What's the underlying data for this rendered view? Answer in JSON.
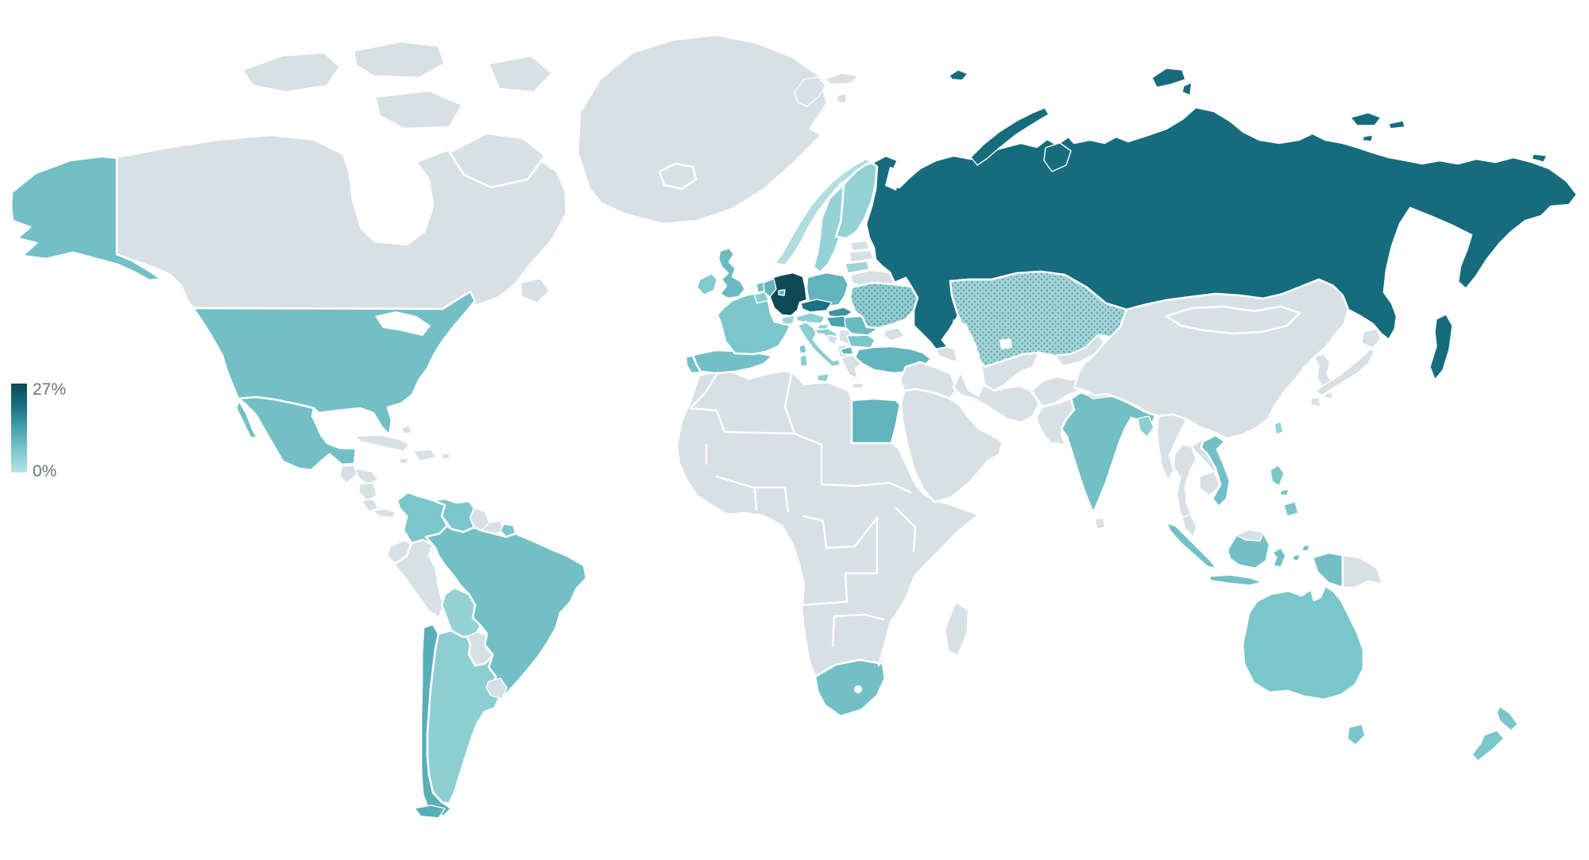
{
  "legend": {
    "max_label": "27%",
    "min_label": "0%"
  },
  "scale": {
    "min": 0,
    "max": 27,
    "unit": "%",
    "no_data_color": "#d7e0e4",
    "stops": [
      "#b9e1e4",
      "#7cc7cb",
      "#45a0ad",
      "#177082",
      "#0e4956"
    ],
    "label_color": "#6b767c",
    "border_color": "#ffffff",
    "sea_color": "#ffffff"
  },
  "chart_data": {
    "type": "heatmap",
    "subtype": "choropleth-world-map",
    "title": "",
    "unit": "%",
    "value_range": [
      0,
      27
    ],
    "legend_position": "left",
    "note": "values estimated from fill colors against the 0%-27% legend gradient; null = no data (gray)",
    "countries": [
      {
        "id": "us",
        "name": "United States",
        "value": 8
      },
      {
        "id": "canada",
        "name": "Canada",
        "value": null
      },
      {
        "id": "greenland",
        "name": "Greenland",
        "value": null
      },
      {
        "id": "mexico",
        "name": "Mexico",
        "value": 8
      },
      {
        "id": "guatemala",
        "name": "Guatemala",
        "value": null
      },
      {
        "id": "honduras",
        "name": "Honduras",
        "value": null
      },
      {
        "id": "nicaragua",
        "name": "Nicaragua",
        "value": null
      },
      {
        "id": "costa-rica",
        "name": "Costa Rica",
        "value": null
      },
      {
        "id": "panama",
        "name": "Panama",
        "value": null
      },
      {
        "id": "cuba",
        "name": "Cuba",
        "value": null
      },
      {
        "id": "hispaniola",
        "name": "Dominican Republic / Haiti",
        "value": null
      },
      {
        "id": "jamaica",
        "name": "Jamaica",
        "value": null
      },
      {
        "id": "puerto-rico",
        "name": "Puerto Rico",
        "value": null
      },
      {
        "id": "bahamas",
        "name": "Bahamas",
        "value": null
      },
      {
        "id": "colombia",
        "name": "Colombia",
        "value": 7
      },
      {
        "id": "venezuela",
        "name": "Venezuela",
        "value": 7
      },
      {
        "id": "guyana",
        "name": "Guyana",
        "value": null
      },
      {
        "id": "suriname",
        "name": "Suriname",
        "value": null
      },
      {
        "id": "french-guiana",
        "name": "French Guiana",
        "value": 7
      },
      {
        "id": "ecuador",
        "name": "Ecuador",
        "value": null
      },
      {
        "id": "peru",
        "name": "Peru",
        "value": null
      },
      {
        "id": "brazil",
        "name": "Brazil",
        "value": 8
      },
      {
        "id": "bolivia",
        "name": "Bolivia",
        "value": 4
      },
      {
        "id": "paraguay",
        "name": "Paraguay",
        "value": null
      },
      {
        "id": "chile",
        "name": "Chile",
        "value": 11
      },
      {
        "id": "argentina",
        "name": "Argentina",
        "value": 5
      },
      {
        "id": "uruguay",
        "name": "Uruguay",
        "value": null
      },
      {
        "id": "iceland",
        "name": "Iceland",
        "value": null
      },
      {
        "id": "ireland",
        "name": "Ireland",
        "value": 6
      },
      {
        "id": "uk",
        "name": "United Kingdom",
        "value": 9
      },
      {
        "id": "portugal",
        "name": "Portugal",
        "value": 8
      },
      {
        "id": "spain",
        "name": "Spain",
        "value": 8
      },
      {
        "id": "france",
        "name": "France",
        "value": 7
      },
      {
        "id": "belgium",
        "name": "Belgium",
        "value": 5
      },
      {
        "id": "netherlands",
        "name": "Netherlands",
        "value": 8
      },
      {
        "id": "germany",
        "name": "Germany",
        "value": 27
      },
      {
        "id": "denmark",
        "name": "Denmark",
        "value": 10
      },
      {
        "id": "norway",
        "name": "Norway",
        "value": 1
      },
      {
        "id": "sweden",
        "name": "Sweden",
        "value": 4
      },
      {
        "id": "finland",
        "name": "Finland",
        "value": 4
      },
      {
        "id": "estonia",
        "name": "Estonia",
        "value": null
      },
      {
        "id": "latvia",
        "name": "Latvia",
        "value": null
      },
      {
        "id": "lithuania",
        "name": "Lithuania",
        "value": 3
      },
      {
        "id": "belarus",
        "name": "Belarus",
        "value": null
      },
      {
        "id": "poland",
        "name": "Poland",
        "value": 10
      },
      {
        "id": "czechia",
        "name": "Czechia",
        "value": 20
      },
      {
        "id": "slovakia",
        "name": "Slovakia",
        "value": 15
      },
      {
        "id": "hungary",
        "name": "Hungary",
        "value": 13
      },
      {
        "id": "austria",
        "name": "Austria",
        "value": 5
      },
      {
        "id": "switzerland",
        "name": "Switzerland",
        "value": 3
      },
      {
        "id": "slovenia",
        "name": "Slovenia",
        "value": 4
      },
      {
        "id": "croatia",
        "name": "Croatia",
        "value": 5
      },
      {
        "id": "bosnia",
        "name": "Bosnia and Herzegovina",
        "value": null
      },
      {
        "id": "serbia",
        "name": "Serbia",
        "value": null
      },
      {
        "id": "albania",
        "name": "Albania / Montenegro",
        "value": null
      },
      {
        "id": "macedonia",
        "name": "North Macedonia",
        "value": null
      },
      {
        "id": "greece",
        "name": "Greece",
        "value": null
      },
      {
        "id": "romania",
        "name": "Romania",
        "value": 9
      },
      {
        "id": "moldova",
        "name": "Moldova",
        "value": null
      },
      {
        "id": "bulgaria",
        "name": "Bulgaria",
        "value": 7
      },
      {
        "id": "ukraine",
        "name": "Ukraine",
        "value": 5,
        "pattern": "dots"
      },
      {
        "id": "crimea",
        "name": "Crimea",
        "value": null
      },
      {
        "id": "italy",
        "name": "Italy",
        "value": 5
      },
      {
        "id": "russia",
        "name": "Russia",
        "value": 21
      },
      {
        "id": "svalbard",
        "name": "Svalbard",
        "value": null
      },
      {
        "id": "kazakhstan",
        "name": "Kazakhstan",
        "value": 3,
        "pattern": "dots"
      },
      {
        "id": "central-asia-west",
        "name": "Uzbekistan / Turkmenistan",
        "value": null
      },
      {
        "id": "central-asia-east",
        "name": "Kyrgyzstan / Tajikistan",
        "value": null
      },
      {
        "id": "caucasus",
        "name": "Georgia / Azerbaijan / Armenia",
        "value": null
      },
      {
        "id": "turkey",
        "name": "Turkey",
        "value": 10
      },
      {
        "id": "syria-iraq",
        "name": "Syria / Iraq / Levant",
        "value": null
      },
      {
        "id": "saudi-arabia",
        "name": "Saudi Arabia / Arabian Peninsula",
        "value": null
      },
      {
        "id": "iran",
        "name": "Iran",
        "value": null
      },
      {
        "id": "afghanistan",
        "name": "Afghanistan",
        "value": null
      },
      {
        "id": "pakistan",
        "name": "Pakistan",
        "value": null
      },
      {
        "id": "india",
        "name": "India",
        "value": 8
      },
      {
        "id": "sri-lanka",
        "name": "Sri Lanka",
        "value": null
      },
      {
        "id": "nepal",
        "name": "Nepal",
        "value": null
      },
      {
        "id": "bangladesh",
        "name": "Bangladesh",
        "value": 5
      },
      {
        "id": "china",
        "name": "China",
        "value": null
      },
      {
        "id": "mongolia",
        "name": "Mongolia",
        "value": null
      },
      {
        "id": "korea",
        "name": "Korea",
        "value": null
      },
      {
        "id": "japan",
        "name": "Japan",
        "value": null
      },
      {
        "id": "taiwan",
        "name": "Taiwan",
        "value": 4
      },
      {
        "id": "myanmar",
        "name": "Myanmar",
        "value": null
      },
      {
        "id": "thailand",
        "name": "Thailand",
        "value": null
      },
      {
        "id": "laos",
        "name": "Laos",
        "value": null
      },
      {
        "id": "cambodia",
        "name": "Cambodia",
        "value": null
      },
      {
        "id": "vietnam",
        "name": "Vietnam",
        "value": 8
      },
      {
        "id": "malaysia",
        "name": "Malaysia",
        "value": null
      },
      {
        "id": "indonesia",
        "name": "Indonesia",
        "value": 8
      },
      {
        "id": "philippines",
        "name": "Philippines",
        "value": 7
      },
      {
        "id": "papua-new-guinea",
        "name": "Papua New Guinea",
        "value": null
      },
      {
        "id": "africa-other",
        "name": "Africa (other, no data)",
        "value": null
      },
      {
        "id": "egypt",
        "name": "Egypt",
        "value": 10
      },
      {
        "id": "south-africa",
        "name": "South Africa",
        "value": 8
      },
      {
        "id": "madagascar",
        "name": "Madagascar",
        "value": null
      },
      {
        "id": "australia",
        "name": "Australia",
        "value": 7
      },
      {
        "id": "new-zealand",
        "name": "New Zealand",
        "value": 7
      }
    ]
  }
}
